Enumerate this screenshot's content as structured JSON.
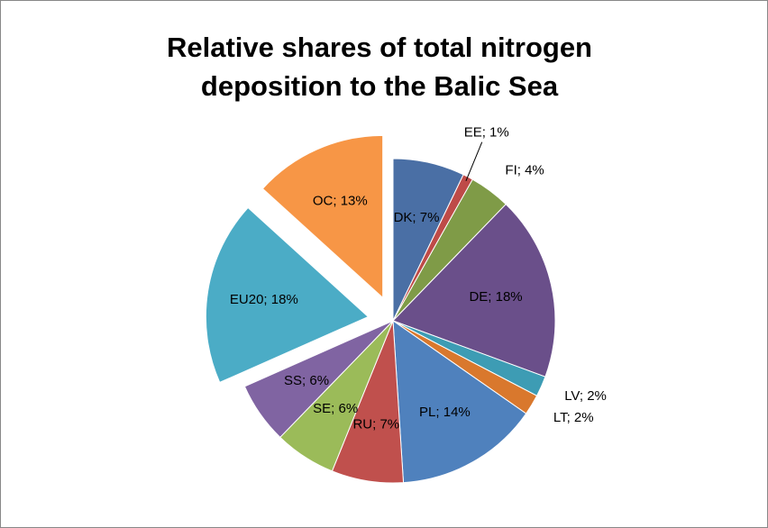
{
  "chart_data": {
    "type": "pie",
    "title": "Relative shares of total nitrogen deposition to the Balic Sea",
    "values": [
      7,
      1,
      4,
      18,
      2,
      2,
      14,
      7,
      6,
      6,
      18,
      13
    ],
    "value_labels": [
      "DK; 7%",
      "EE; 1%",
      "FI; 4%",
      "DE; 18%",
      "LV; 2%",
      "LT; 2%",
      "PL; 14%",
      "RU; 7%",
      "SE; 6%",
      "SS; 6%",
      "EU20; 18%",
      "OC; 13%"
    ],
    "colors": [
      "#4a6fa5",
      "#be4b48",
      "#7f9b47",
      "#6a4f8a",
      "#3d9cb4",
      "#d9782d",
      "#4f81bd",
      "#c0504d",
      "#9bbb59",
      "#8064a2",
      "#4bacc6",
      "#f79646"
    ]
  }
}
